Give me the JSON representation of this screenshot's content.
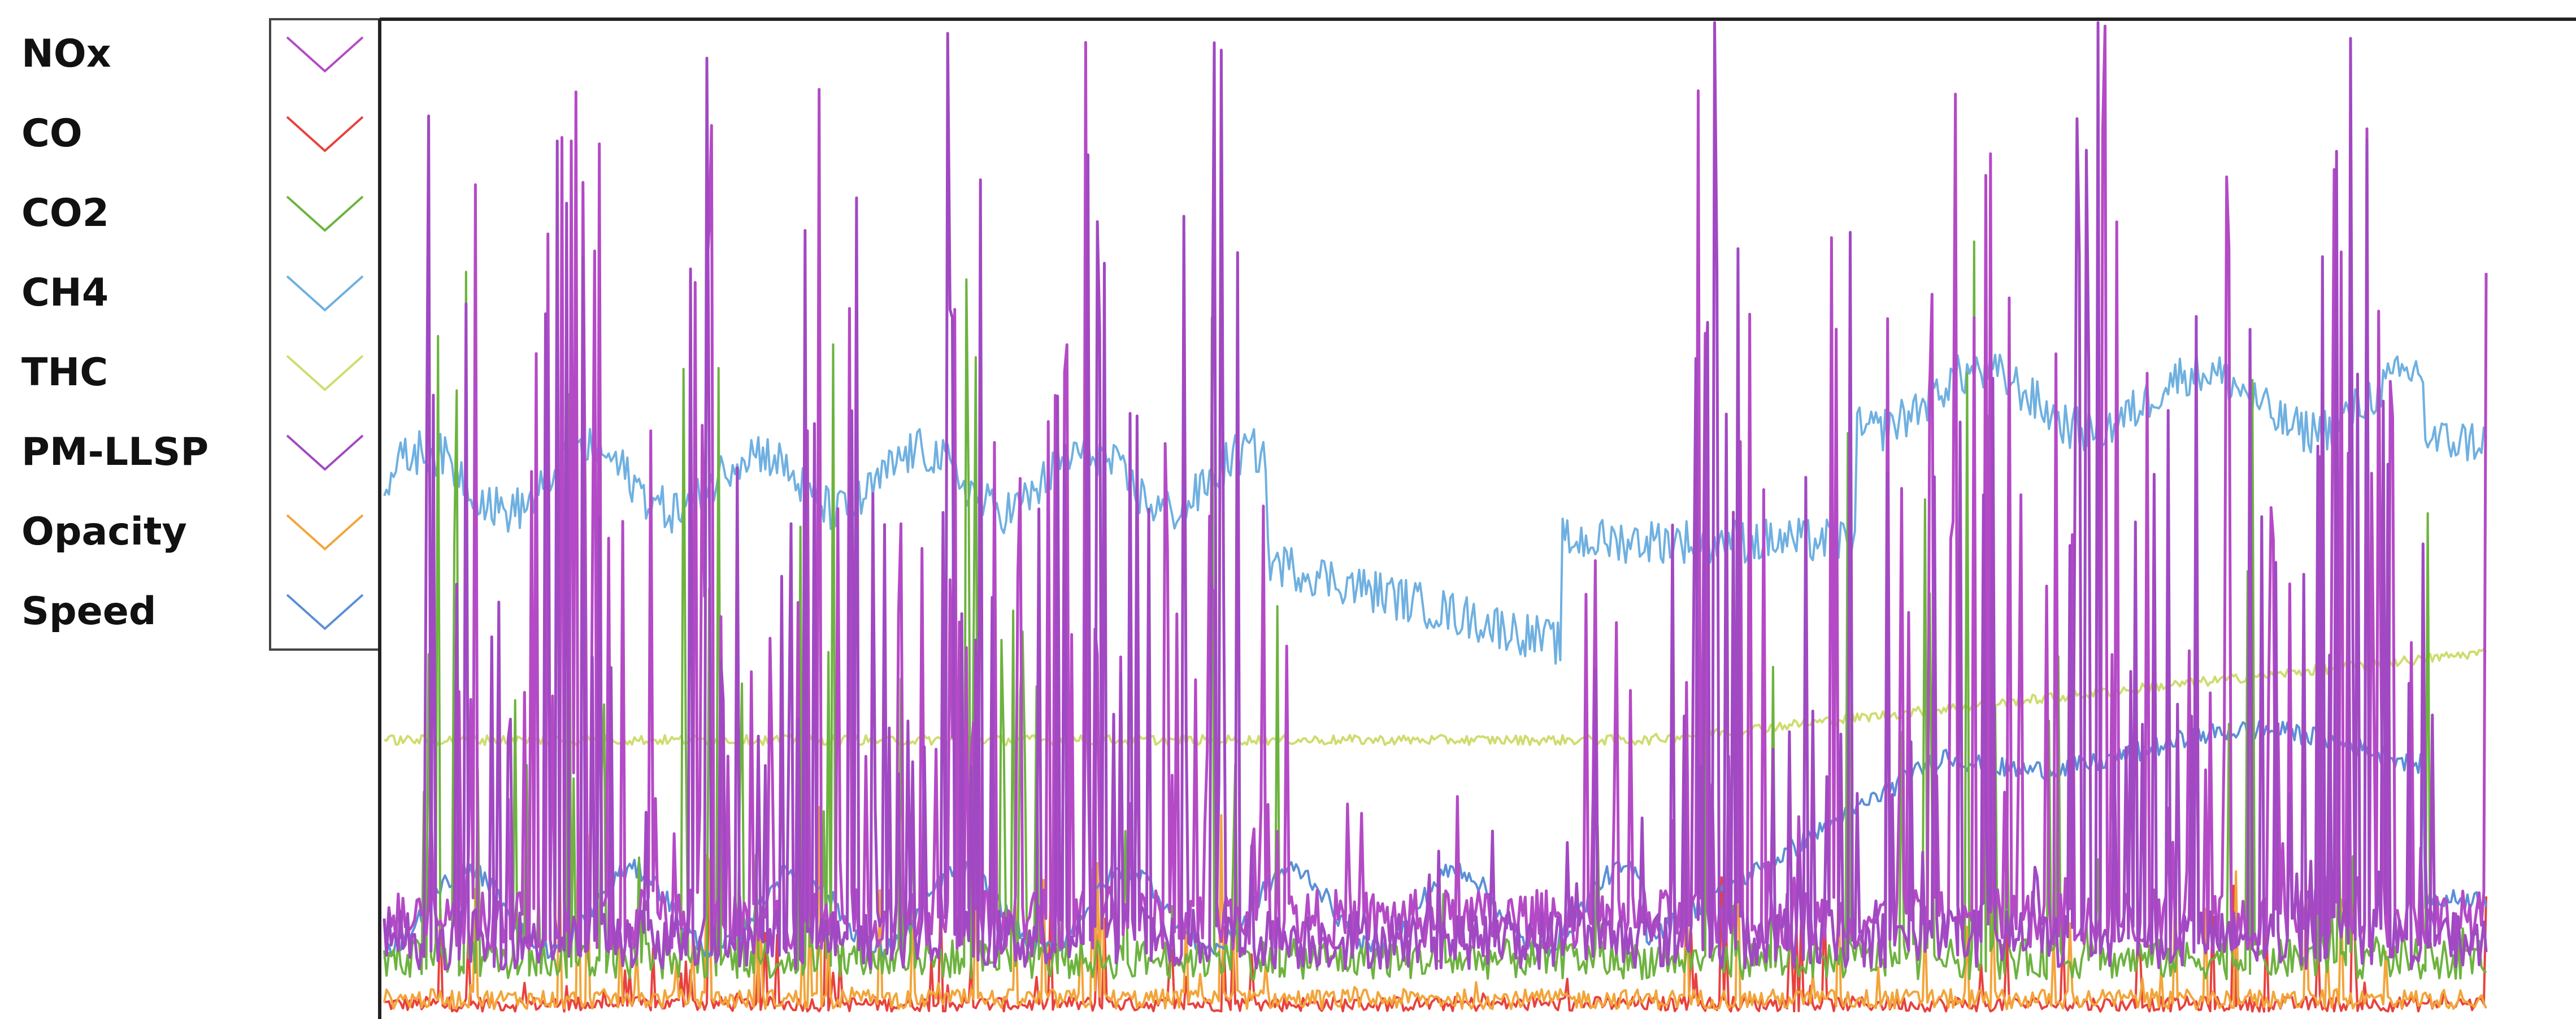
{
  "chart_data": {
    "type": "line",
    "title": "",
    "xlabel": "",
    "ylabel": "",
    "grid": false,
    "ylim": [
      0,
      100
    ],
    "legend_placement": "left",
    "series": [
      {
        "name": "NOx",
        "color": "#b44ac6"
      },
      {
        "name": "CO",
        "color": "#e8413e"
      },
      {
        "name": "CO2",
        "color": "#6db33f"
      },
      {
        "name": "CH4",
        "color": "#6fb0e0"
      },
      {
        "name": "THC",
        "color": "#cfdc6e"
      },
      {
        "name": "PM-LLSP",
        "color": "#a049c2"
      },
      {
        "name": "Opacity",
        "color": "#f2a53a"
      },
      {
        "name": "Speed",
        "color": "#5b8fd6"
      }
    ]
  }
}
